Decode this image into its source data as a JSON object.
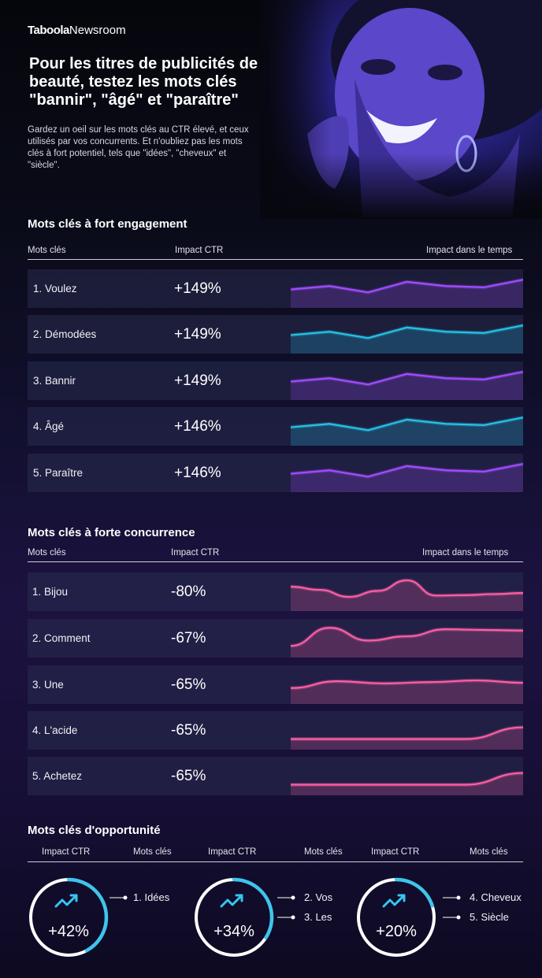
{
  "brand": {
    "name_bold": "Taboola",
    "name_light": "Newsroom"
  },
  "header": {
    "title": "Pour les titres de publicités de beauté, testez les mots clés \"bannir\", \"âgé\" et \"paraître\"",
    "intro": "Gardez un oeil sur les mots clés au CTR élevé, et ceux utilisés par vos concurrents. Et n'oubliez pas les mots clés à fort potentiel, tels que \"idées\", \"cheveux\" et \"siècle\"."
  },
  "colors": {
    "purple": "#a24cff",
    "cyan": "#25c2e6",
    "pink": "#ff5fa4",
    "ring": "#3fc4ec"
  },
  "chart_data": [
    {
      "type": "table",
      "title": "Mots clés à fort engagement",
      "columns": [
        "Mots clés",
        "Impact CTR",
        "Impact dans le temps"
      ],
      "rows": [
        {
          "keyword": "1. Voulez",
          "ctr": "+149%",
          "color": "purple",
          "trend": [
            0.42,
            0.58,
            0.28,
            0.78,
            0.58,
            0.52,
            0.88
          ]
        },
        {
          "keyword": "2. Démodées",
          "ctr": "+149%",
          "color": "cyan",
          "trend": [
            0.42,
            0.58,
            0.28,
            0.78,
            0.58,
            0.52,
            0.88
          ]
        },
        {
          "keyword": "3. Bannir",
          "ctr": "+149%",
          "color": "purple",
          "trend": [
            0.42,
            0.58,
            0.28,
            0.78,
            0.58,
            0.52,
            0.88
          ]
        },
        {
          "keyword": "4. Âgé",
          "ctr": "+146%",
          "color": "cyan",
          "trend": [
            0.42,
            0.58,
            0.28,
            0.78,
            0.58,
            0.52,
            0.88
          ]
        },
        {
          "keyword": "5. Paraître",
          "ctr": "+146%",
          "color": "purple",
          "trend": [
            0.42,
            0.58,
            0.28,
            0.78,
            0.58,
            0.52,
            0.88
          ]
        }
      ]
    },
    {
      "type": "table",
      "title": "Mots clés à forte concurrence",
      "columns": [
        "Mots clés",
        "Impact CTR",
        "Impact dans le temps"
      ],
      "rows": [
        {
          "keyword": "1. Bijou",
          "ctr": "-80%",
          "color": "pink",
          "trend": [
            0.7,
            0.55,
            0.22,
            0.5,
            1.0,
            0.28,
            0.3,
            0.35,
            0.4
          ]
        },
        {
          "keyword": "2. Comment",
          "ctr": "-67%",
          "color": "pink",
          "trend": [
            0.1,
            0.95,
            0.35,
            0.55,
            0.88,
            0.85,
            0.82
          ]
        },
        {
          "keyword": "3. Une",
          "ctr": "-65%",
          "color": "pink",
          "trend": [
            0.3,
            0.62,
            0.52,
            0.58,
            0.66,
            0.55
          ]
        },
        {
          "keyword": "4. L'acide",
          "ctr": "-65%",
          "color": "pink",
          "trend": [
            0.05,
            0.05,
            0.05,
            0.05,
            0.6
          ]
        },
        {
          "keyword": "5. Achetez",
          "ctr": "-65%",
          "color": "pink",
          "trend": [
            0.05,
            0.05,
            0.05,
            0.05,
            0.6
          ]
        }
      ]
    },
    {
      "type": "donut",
      "title": "Mots clés d'opportunité",
      "headers": [
        "Impact CTR",
        "Mots clés",
        "Impact CTR",
        "Mots clés",
        "Impact CTR",
        "Mots clés"
      ],
      "items": [
        {
          "ctr": "+42%",
          "fraction": 0.42,
          "keywords": [
            "1. Idées"
          ]
        },
        {
          "ctr": "+34%",
          "fraction": 0.34,
          "keywords": [
            "2. Vos",
            "3. Les"
          ]
        },
        {
          "ctr": "+20%",
          "fraction": 0.2,
          "keywords": [
            "4. Cheveux",
            "5. Siècle"
          ]
        }
      ]
    }
  ]
}
